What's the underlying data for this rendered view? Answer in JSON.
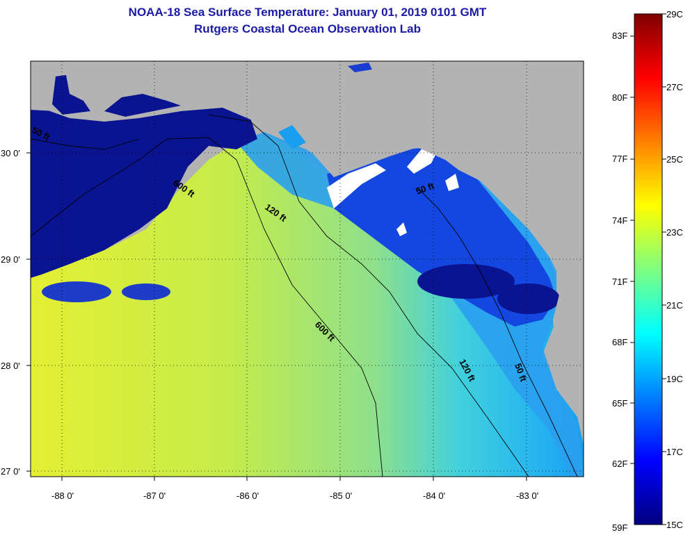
{
  "title": "NOAA-18 Sea Surface Temperature:  January 01, 2019 0101 GMT",
  "subtitle": "Rutgers Coastal Ocean Observation Lab",
  "lon_ticks": [
    "-88 0'",
    "-87 0'",
    "-86 0'",
    "-85 0'",
    "-84 0'",
    "-83 0'"
  ],
  "lat_ticks": [
    "30 0'",
    "29 0'",
    "28 0'",
    "27 0'"
  ],
  "contours": [
    {
      "label": "50 ft"
    },
    {
      "label": "600 ft"
    },
    {
      "label": "120 ft"
    },
    {
      "label": "50 ft"
    },
    {
      "label": "600 ft"
    },
    {
      "label": "120 ft"
    },
    {
      "label": "50 ft"
    }
  ],
  "colorbar": {
    "fahrenheit": [
      "83F",
      "80F",
      "77F",
      "74F",
      "71F",
      "68F",
      "65F",
      "62F",
      "59F"
    ],
    "celsius": [
      "29C",
      "27C",
      "25C",
      "23C",
      "21C",
      "19C",
      "17C",
      "15C"
    ],
    "colors": [
      "#00007f",
      "#0000ff",
      "#007fff",
      "#00ffff",
      "#7fff7f",
      "#ffff00",
      "#ff7f00",
      "#ff0000",
      "#7f0000"
    ]
  },
  "colors": {
    "land": "#b3b3b3",
    "cold_water": "#0a1490",
    "warm_water": "#d6ee2c",
    "title": "#1a1aa6"
  }
}
